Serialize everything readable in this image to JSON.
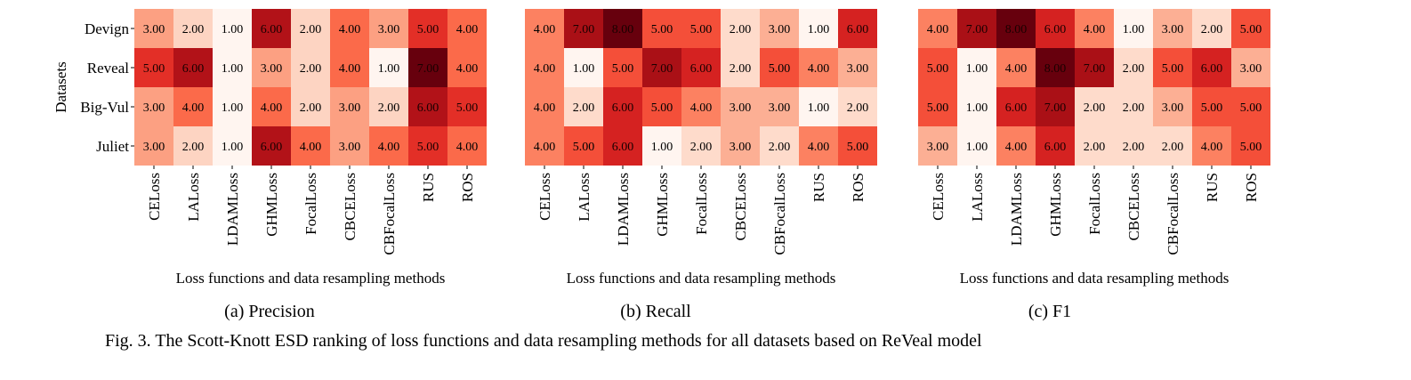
{
  "figure": {
    "caption": "Fig. 3.  The Scott-Knott ESD ranking of loss functions and data resampling methods for all datasets based on ReVeal model"
  },
  "chart_data": [
    {
      "type": "heatmap",
      "subcaption": "(a)  Precision",
      "xlabel": "Loss functions and data resampling methods",
      "ylabel": "Datasets",
      "x_categories": [
        "CELoss",
        "LALoss",
        "LDAMLoss",
        "GHMLoss",
        "FocalLoss",
        "CBCELoss",
        "CBFocalLoss",
        "RUS",
        "ROS"
      ],
      "y_categories": [
        "Devign",
        "Reveal",
        "Big-Vul",
        "Juliet"
      ],
      "values": [
        [
          3.0,
          2.0,
          1.0,
          6.0,
          2.0,
          4.0,
          3.0,
          5.0,
          4.0
        ],
        [
          5.0,
          6.0,
          1.0,
          3.0,
          2.0,
          4.0,
          1.0,
          7.0,
          4.0
        ],
        [
          3.0,
          4.0,
          1.0,
          4.0,
          2.0,
          3.0,
          2.0,
          6.0,
          5.0
        ],
        [
          3.0,
          2.0,
          1.0,
          6.0,
          4.0,
          3.0,
          4.0,
          5.0,
          4.0
        ]
      ],
      "colormap": "Reds",
      "color_range": [
        1,
        7
      ]
    },
    {
      "type": "heatmap",
      "subcaption": "(b)  Recall",
      "xlabel": "Loss functions and data resampling methods",
      "ylabel": "",
      "x_categories": [
        "CELoss",
        "LALoss",
        "LDAMLoss",
        "GHMLoss",
        "FocalLoss",
        "CBCELoss",
        "CBFocalLoss",
        "RUS",
        "ROS"
      ],
      "y_categories": [],
      "values": [
        [
          4.0,
          7.0,
          8.0,
          5.0,
          5.0,
          2.0,
          3.0,
          1.0,
          6.0
        ],
        [
          4.0,
          1.0,
          5.0,
          7.0,
          6.0,
          2.0,
          5.0,
          4.0,
          3.0
        ],
        [
          4.0,
          2.0,
          6.0,
          5.0,
          4.0,
          3.0,
          3.0,
          1.0,
          2.0
        ],
        [
          4.0,
          5.0,
          6.0,
          1.0,
          2.0,
          3.0,
          2.0,
          4.0,
          5.0
        ]
      ],
      "colormap": "Reds",
      "color_range": [
        1,
        8
      ]
    },
    {
      "type": "heatmap",
      "subcaption": "(c)  F1",
      "xlabel": "Loss functions and data resampling methods",
      "ylabel": "",
      "x_categories": [
        "CELoss",
        "LALoss",
        "LDAMLoss",
        "GHMLoss",
        "FocalLoss",
        "CBCELoss",
        "CBFocalLoss",
        "RUS",
        "ROS"
      ],
      "y_categories": [],
      "values": [
        [
          4.0,
          7.0,
          8.0,
          6.0,
          4.0,
          1.0,
          3.0,
          2.0,
          5.0
        ],
        [
          5.0,
          1.0,
          4.0,
          8.0,
          7.0,
          2.0,
          5.0,
          6.0,
          3.0
        ],
        [
          5.0,
          1.0,
          6.0,
          7.0,
          2.0,
          2.0,
          3.0,
          5.0,
          5.0
        ],
        [
          3.0,
          1.0,
          4.0,
          6.0,
          2.0,
          2.0,
          2.0,
          4.0,
          5.0
        ]
      ],
      "colormap": "Reds",
      "color_range": [
        1,
        8
      ]
    }
  ]
}
